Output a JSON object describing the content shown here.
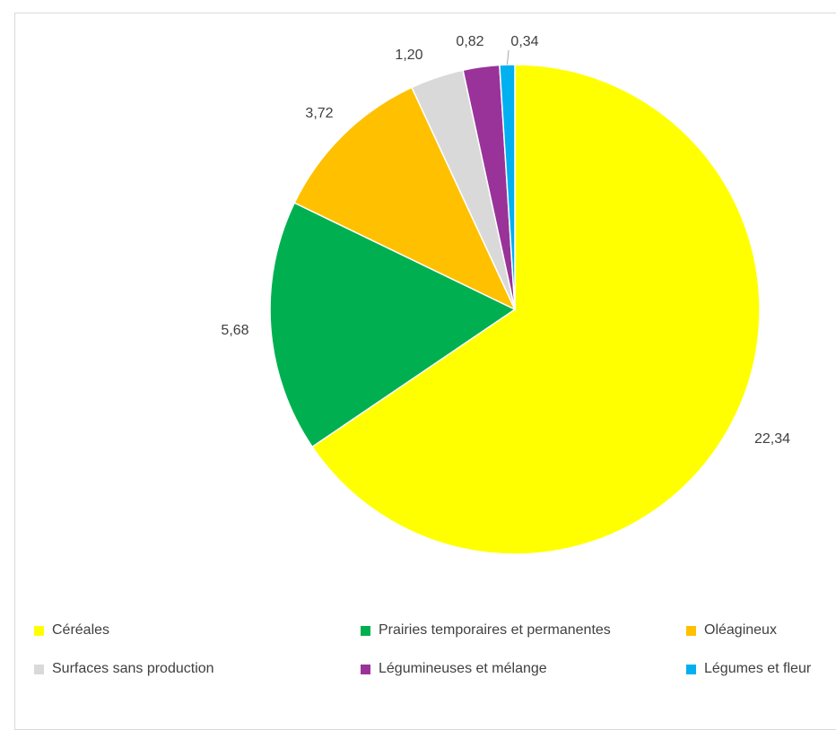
{
  "chart_data": {
    "type": "pie",
    "title": "",
    "categories": [
      "Céréales",
      "Prairies temporaires et permanentes",
      "Oléagineux",
      "Surfaces sans production",
      "Légumineuses et mélange",
      "Légumes et fleurs"
    ],
    "values": [
      22.34,
      5.68,
      3.72,
      1.2,
      0.82,
      0.34
    ],
    "value_labels": [
      "22,34",
      "5,68",
      "3,72",
      "1,20",
      "0,82",
      "0,34"
    ],
    "colors": [
      "#ffff00",
      "#00b050",
      "#ffc000",
      "#d9d9d9",
      "#993399",
      "#00b0f0"
    ],
    "legend_placement": "bottom",
    "legend_text": [
      "Céréales",
      "Prairies temporaires et permanentes",
      "Oléagineux",
      "Surfaces sans production",
      "Légumineuses et mélange",
      "Légumes et fleur"
    ]
  }
}
